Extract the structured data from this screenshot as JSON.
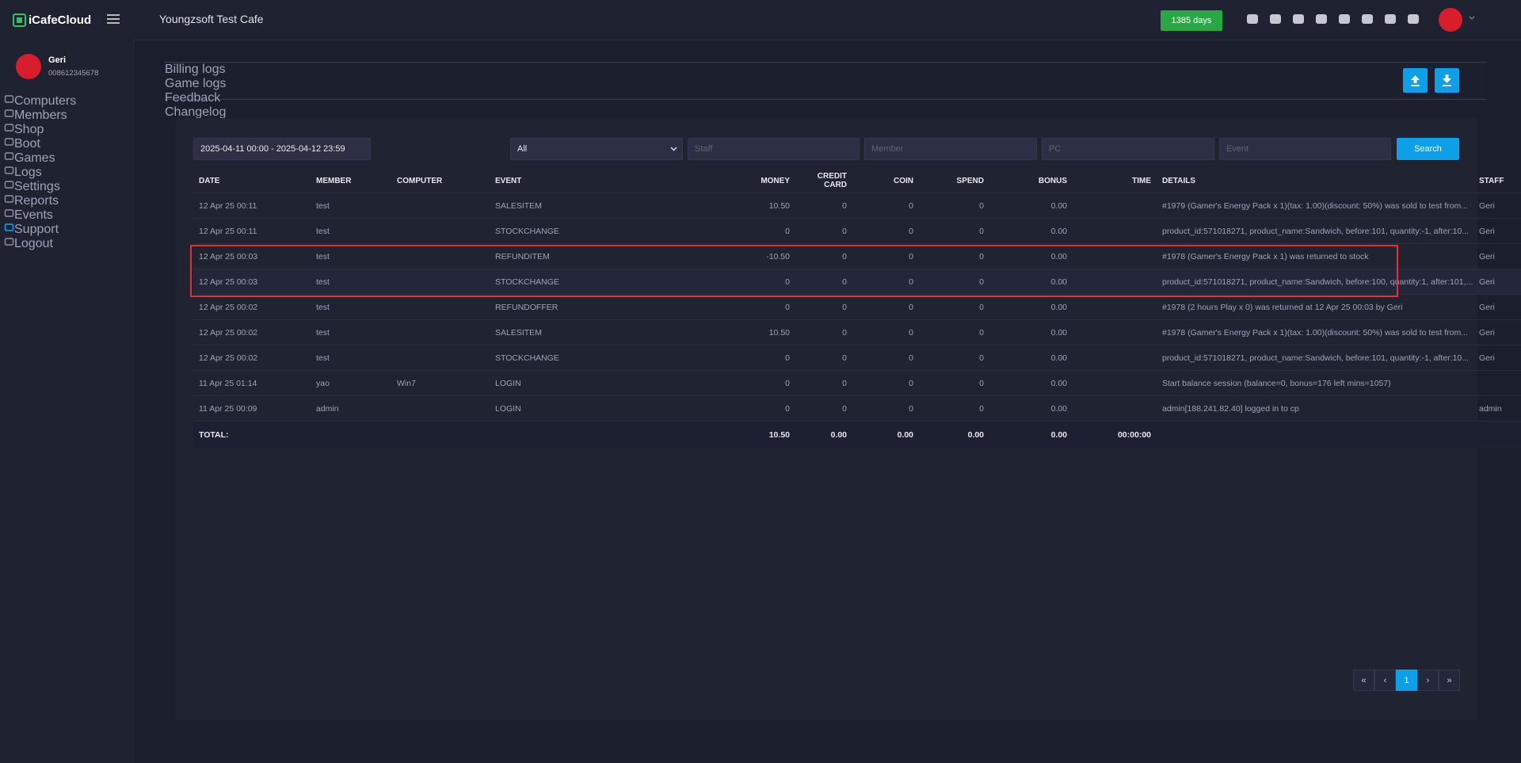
{
  "sidebar": {
    "logo": "iCafeCloud",
    "user": {
      "name": "Geri",
      "id": "008612345678"
    },
    "nav": [
      "Computers",
      "Members",
      "Shop",
      "Boot",
      "Games",
      "Logs",
      "Settings",
      "Reports",
      "Events",
      "Support",
      "Logout"
    ]
  },
  "header": {
    "title": "Youngzsoft Test Cafe",
    "badge": "1385 days"
  },
  "tabs": [
    "Billing logs",
    "Game logs",
    "Feedback",
    "Changelog"
  ],
  "filters": {
    "date_range": "2025-04-11 00:00 - 2025-04-12 23:59",
    "type": "All",
    "staff": "Staff",
    "member": "Member",
    "pc": "PC",
    "event": "Event",
    "search": "Search"
  },
  "table": {
    "columns": [
      "DATE",
      "MEMBER",
      "COMPUTER",
      "EVENT",
      "MONEY",
      "CREDIT CARD",
      "COIN",
      "SPEND",
      "BONUS",
      "TIME",
      "DETAILS",
      "STAFF"
    ],
    "rows": [
      [
        "12 Apr 25 00:11",
        "test",
        null,
        "SALESITEM",
        "10.50",
        "0",
        "0",
        "0",
        "0.00",
        null,
        "#1979 (Gamer's Energy Pack x 1)(tax: 1.00)(discount: 50%) was sold to test from...",
        "Geri"
      ],
      [
        "12 Apr 25 00:11",
        "test",
        null,
        "STOCKCHANGE",
        "0",
        "0",
        "0",
        "0",
        "0.00",
        null,
        "product_id:571018271, product_name:Sandwich, before:101, quantity:-1, after:10...",
        "Geri"
      ],
      [
        "12 Apr 25 00:03",
        "test",
        null,
        "REFUNDITEM",
        "-10.50",
        "0",
        "0",
        "0",
        "0.00",
        null,
        "#1978 (Gamer's Energy Pack x 1) was returned to stock",
        "Geri"
      ],
      [
        "12 Apr 25 00:03",
        "test",
        null,
        "STOCKCHANGE",
        "0",
        "0",
        "0",
        "0",
        "0.00",
        null,
        "product_id:571018271, product_name:Sandwich, before:100, quantity:1, after:101,...",
        "Geri"
      ],
      [
        "12 Apr 25 00:02",
        "test",
        null,
        "REFUNDOFFER",
        "0",
        "0",
        "0",
        "0",
        "0.00",
        null,
        "#1978 (2 hours Play x 0) was returned at 12 Apr 25 00:03 by Geri",
        "Geri"
      ],
      [
        "12 Apr 25 00:02",
        "test",
        null,
        "SALESITEM",
        "10.50",
        "0",
        "0",
        "0",
        "0.00",
        null,
        "#1978 (Gamer's Energy Pack x 1)(tax: 1.00)(discount: 50%) was sold to test from...",
        "Geri"
      ],
      [
        "12 Apr 25 00:02",
        "test",
        null,
        "STOCKCHANGE",
        "0",
        "0",
        "0",
        "0",
        "0.00",
        null,
        "product_id:571018271, product_name:Sandwich, before:101, quantity:-1, after:10...",
        "Geri"
      ],
      [
        "11 Apr 25 01:14",
        "yao",
        "Win7",
        "LOGIN",
        "0",
        "0",
        "0",
        "0",
        "0.00",
        null,
        "Start balance session (balance=0, bonus=176 left mins=1057)",
        null
      ],
      [
        "11 Apr 25 00:09",
        "admin",
        null,
        "LOGIN",
        "0",
        "0",
        "0",
        "0",
        "0.00",
        null,
        "admin[188.241.82.40] logged in to cp",
        "admin"
      ]
    ],
    "total": [
      "TOTAL:",
      null,
      null,
      null,
      "10.50",
      "0.00",
      "0.00",
      "0.00",
      "0.00",
      "00:00:00",
      null,
      null
    ]
  },
  "pagination": [
    "«",
    "‹",
    "1",
    "›",
    "»"
  ]
}
